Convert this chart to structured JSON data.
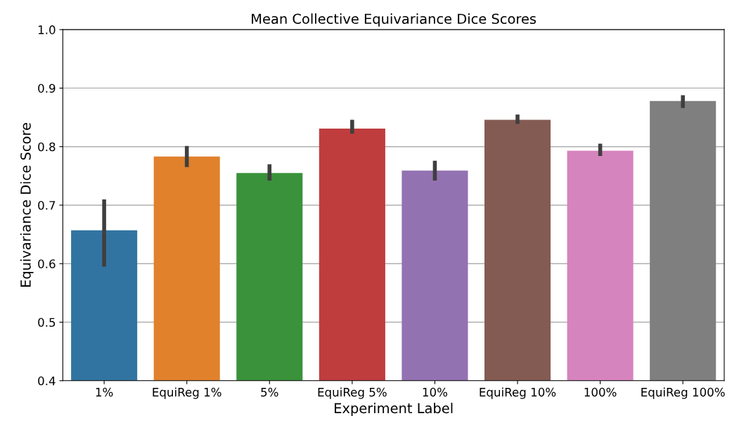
{
  "chart_data": {
    "type": "bar",
    "title": "Mean Collective Equivariance Dice Scores",
    "xlabel": "Experiment Label",
    "ylabel": "Equivariance Dice Score",
    "categories": [
      "1%",
      "EquiReg 1%",
      "5%",
      "EquiReg 5%",
      "10%",
      "EquiReg 10%",
      "100%",
      "EquiReg 100%"
    ],
    "values": [
      0.657,
      0.783,
      0.755,
      0.831,
      0.759,
      0.846,
      0.793,
      0.878
    ],
    "colors": [
      "#3274a1",
      "#e1812c",
      "#3a923a",
      "#c03d3e",
      "#9372b2",
      "#845b53",
      "#d684bd",
      "#7f7f7f"
    ],
    "errors": [
      [
        0.595,
        0.71
      ],
      [
        0.765,
        0.801
      ],
      [
        0.742,
        0.77
      ],
      [
        0.822,
        0.846
      ],
      [
        0.742,
        0.776
      ],
      [
        0.839,
        0.855
      ],
      [
        0.784,
        0.805
      ],
      [
        0.866,
        0.888
      ]
    ],
    "ylim": [
      0.4,
      1.0
    ],
    "yticks": [
      0.4,
      0.5,
      0.6,
      0.7,
      0.8,
      0.9,
      {
        "value": 1.0,
        "label": "1.0"
      }
    ],
    "grid": "y"
  }
}
